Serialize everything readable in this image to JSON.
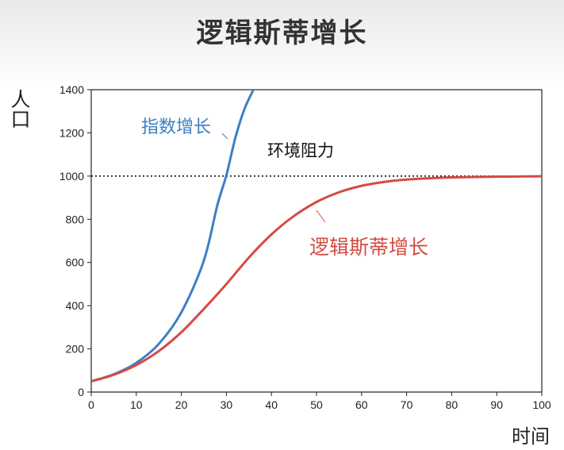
{
  "title": "逻辑斯蒂增长",
  "chart_data": {
    "type": "line",
    "xlabel": "时间",
    "ylabel": "人口",
    "xlim": [
      0,
      100
    ],
    "ylim": [
      0,
      1400
    ],
    "xticks": [
      0,
      10,
      20,
      30,
      40,
      50,
      60,
      70,
      80,
      90,
      100
    ],
    "yticks": [
      0,
      200,
      400,
      600,
      800,
      1000,
      1200,
      1400
    ],
    "grid": false,
    "reference_line": {
      "y": 1000,
      "style": "dotted",
      "label": "环境阻力"
    },
    "series": [
      {
        "name": "指数增长",
        "color": "#3b7fc4",
        "x": [
          0,
          5,
          10,
          15,
          20,
          25,
          28,
          30,
          32,
          34,
          36
        ],
        "y": [
          50,
          82,
          135,
          223,
          369,
          609,
          866,
          1004,
          1178,
          1310,
          1400
        ]
      },
      {
        "name": "逻辑斯蒂增长",
        "color": "#d44b43",
        "x": [
          0,
          5,
          10,
          15,
          20,
          25,
          30,
          35,
          40,
          45,
          50,
          55,
          60,
          65,
          70,
          75,
          80,
          85,
          90,
          95,
          100
        ],
        "y": [
          50,
          80,
          125,
          190,
          277,
          385,
          500,
          623,
          730,
          815,
          880,
          925,
          955,
          973,
          984,
          990,
          994,
          996,
          997,
          998,
          999
        ]
      }
    ],
    "annotations": [
      {
        "text": "指数增长",
        "color": "#3b7fc4"
      },
      {
        "text": "环境阻力",
        "color": "#111111"
      },
      {
        "text": "逻辑斯蒂增长",
        "color": "#d44b43"
      }
    ]
  }
}
